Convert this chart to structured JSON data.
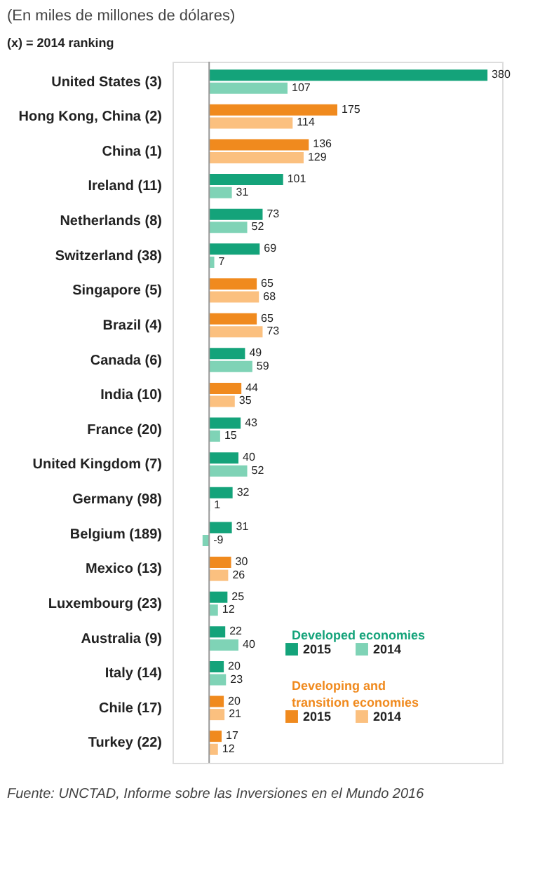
{
  "chart_data": {
    "type": "bar",
    "orientation": "horizontal",
    "title": "(En miles de millones de dólares)",
    "subtitle": "(x) = 2014 ranking",
    "categories": [
      "United States (3)",
      "Hong Kong, China (2)",
      "China (1)",
      "Ireland (11)",
      "Netherlands (8)",
      "Switzerland (38)",
      "Singapore (5)",
      "Brazil (4)",
      "Canada (6)",
      "India (10)",
      "France (20)",
      "United Kingdom (7)",
      "Germany (98)",
      "Belgium (189)",
      "Mexico (13)",
      "Luxembourg (23)",
      "Australia (9)",
      "Italy (14)",
      "Chile (17)",
      "Turkey (22)"
    ],
    "series": [
      {
        "name": "2015",
        "color": "#14a37a",
        "values": [
          380,
          null,
          null,
          101,
          73,
          69,
          null,
          null,
          49,
          null,
          43,
          40,
          32,
          31,
          null,
          25,
          22,
          20,
          null,
          null
        ]
      },
      {
        "name": "2014",
        "color": "#7fd3b6",
        "values": [
          107,
          null,
          null,
          31,
          52,
          7,
          null,
          null,
          59,
          null,
          15,
          52,
          1,
          -9,
          null,
          12,
          40,
          23,
          null,
          null
        ]
      },
      {
        "name": "2015",
        "color": "#f08a1e",
        "values": [
          null,
          175,
          136,
          null,
          null,
          null,
          65,
          65,
          null,
          44,
          null,
          null,
          null,
          null,
          30,
          null,
          null,
          null,
          20,
          17
        ]
      },
      {
        "name": "2014",
        "color": "#fbc07f",
        "values": [
          null,
          114,
          129,
          null,
          null,
          null,
          68,
          73,
          null,
          35,
          null,
          null,
          null,
          null,
          26,
          null,
          null,
          null,
          21,
          12
        ]
      }
    ],
    "data_labels": true,
    "legend": "bottom right",
    "grid": false,
    "ref_lines": [
      {
        "axis": "x",
        "value": 0,
        "color": "#999999"
      }
    ],
    "annotations": [
      "Developed economies",
      "Developing and transition economies",
      "Fuente: UNCTAD, Informe sobre las Inversiones en el Mundo 2016"
    ]
  }
}
